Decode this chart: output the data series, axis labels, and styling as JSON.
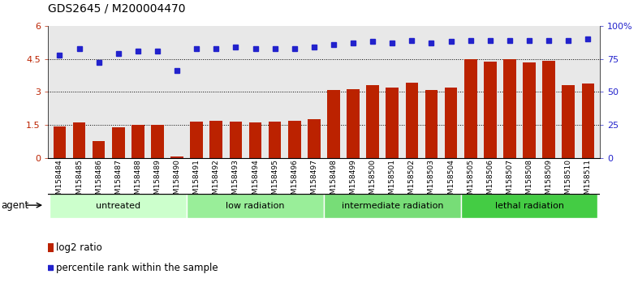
{
  "title": "GDS2645 / M200004470",
  "samples": [
    "GSM158484",
    "GSM158485",
    "GSM158486",
    "GSM158487",
    "GSM158488",
    "GSM158489",
    "GSM158490",
    "GSM158491",
    "GSM158492",
    "GSM158493",
    "GSM158494",
    "GSM158495",
    "GSM158496",
    "GSM158497",
    "GSM158498",
    "GSM158499",
    "GSM158500",
    "GSM158501",
    "GSM158502",
    "GSM158503",
    "GSM158504",
    "GSM158505",
    "GSM158506",
    "GSM158507",
    "GSM158508",
    "GSM158509",
    "GSM158510",
    "GSM158511"
  ],
  "log2_ratio": [
    1.42,
    1.6,
    0.78,
    1.38,
    1.5,
    1.5,
    0.05,
    1.65,
    1.7,
    1.65,
    1.62,
    1.65,
    1.68,
    1.75,
    3.08,
    3.12,
    3.32,
    3.18,
    3.42,
    3.1,
    3.2,
    4.48,
    4.38,
    4.48,
    4.35,
    4.42,
    3.3,
    3.38
  ],
  "percentile_rank": [
    78,
    83,
    72,
    79,
    81,
    81,
    66,
    83,
    83,
    84,
    83,
    83,
    83,
    84,
    86,
    87,
    88,
    87,
    89,
    87,
    88,
    89,
    89,
    89,
    89,
    89,
    89,
    90
  ],
  "groups": [
    {
      "label": "untreated",
      "start": 0,
      "end": 7,
      "color": "#ccffcc"
    },
    {
      "label": "low radiation",
      "start": 7,
      "end": 14,
      "color": "#99ee99"
    },
    {
      "label": "intermediate radiation",
      "start": 14,
      "end": 21,
      "color": "#77dd77"
    },
    {
      "label": "lethal radiation",
      "start": 21,
      "end": 28,
      "color": "#44cc44"
    }
  ],
  "bar_color": "#bb2200",
  "dot_color": "#2222cc",
  "ylim_left": [
    0,
    6
  ],
  "ylim_right": [
    0,
    100
  ],
  "yticks_left": [
    0,
    1.5,
    3.0,
    4.5,
    6.0
  ],
  "ytick_labels_left": [
    "0",
    "1.5",
    "3",
    "4.5",
    "6"
  ],
  "yticks_right": [
    0,
    25,
    50,
    75,
    100
  ],
  "ytick_labels_right": [
    "0",
    "25",
    "50",
    "75",
    "100%"
  ],
  "hlines": [
    1.5,
    3.0,
    4.5
  ],
  "agent_label": "agent",
  "legend_bar_label": "log2 ratio",
  "legend_dot_label": "percentile rank within the sample",
  "bg_color": "#ffffff",
  "axis_bg_color": "#e8e8e8"
}
